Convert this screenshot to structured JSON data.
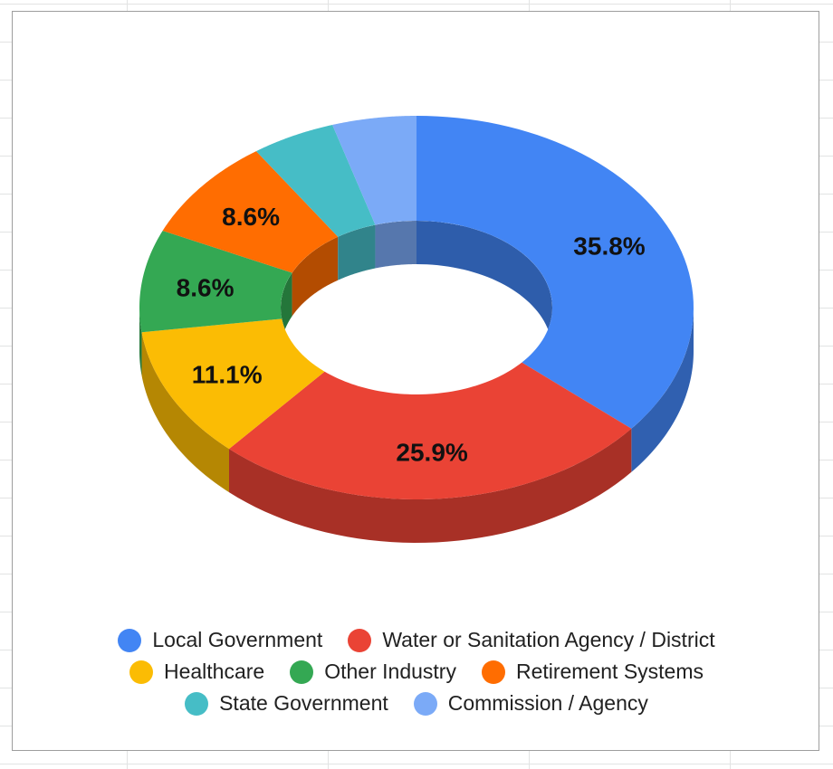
{
  "chart_data": {
    "type": "pie",
    "subtype": "3d-donut",
    "title": "",
    "slices": [
      {
        "label": "Local Government",
        "value": 35.8,
        "display": "35.8%",
        "color": "#4285f4"
      },
      {
        "label": "Water or Sanitation Agency / District",
        "value": 25.9,
        "display": "25.9%",
        "color": "#ea4335"
      },
      {
        "label": "Healthcare",
        "value": 11.1,
        "display": "11.1%",
        "color": "#fbbc04"
      },
      {
        "label": "Other Industry",
        "value": 8.6,
        "display": "8.6%",
        "color": "#34a853"
      },
      {
        "label": "Retirement Systems",
        "value": 8.6,
        "display": "8.6%",
        "color": "#ff6d01"
      },
      {
        "label": "State Government",
        "value": 4.9,
        "display": "",
        "color": "#46bdc6"
      },
      {
        "label": "Commission / Agency",
        "value": 4.9,
        "display": "",
        "color": "#7baaf7"
      }
    ],
    "legend_position": "bottom",
    "legend_rows": [
      [
        "Local Government",
        "Water or Sanitation Agency / District"
      ],
      [
        "Healthcare",
        "Other Industry",
        "Retirement Systems"
      ],
      [
        "State Government",
        "Commission / Agency"
      ]
    ]
  }
}
